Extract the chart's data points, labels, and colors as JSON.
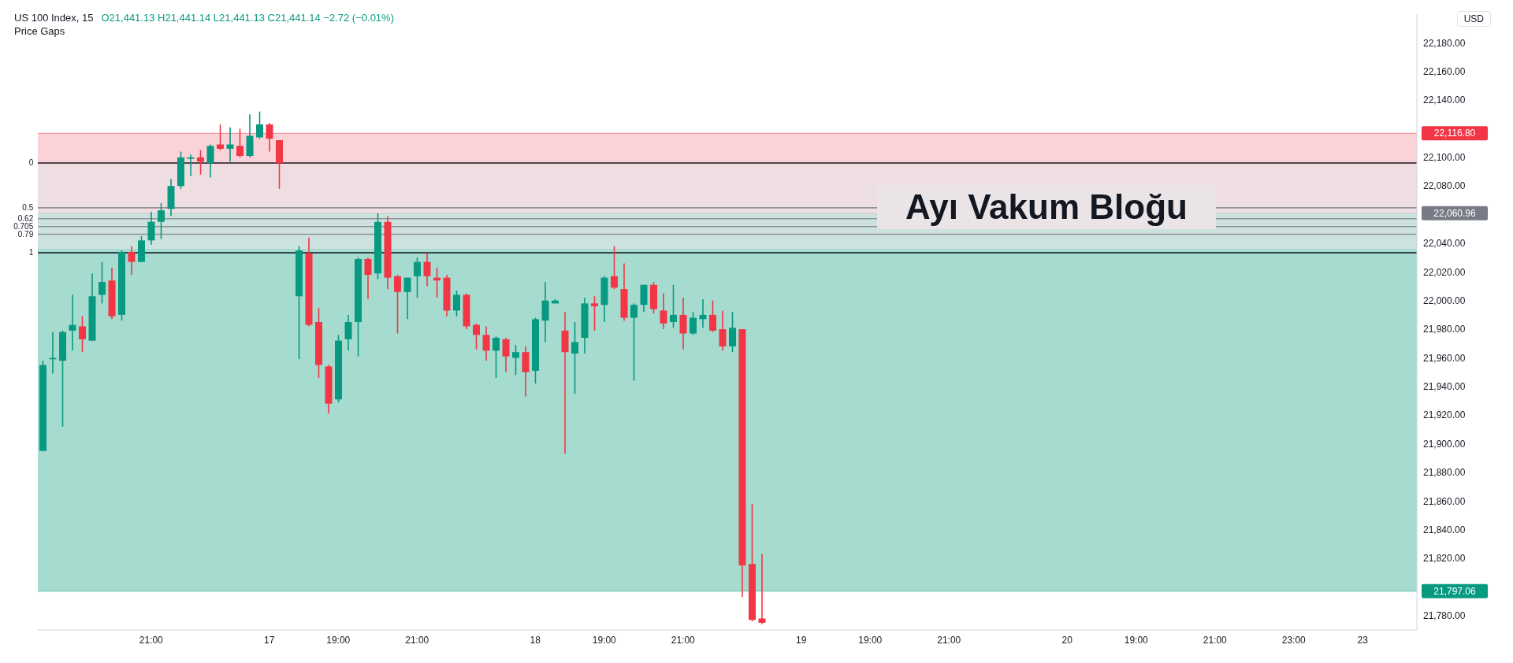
{
  "chart_data": {
    "type": "candlestick",
    "title": "US 100 Index, 15",
    "ylabel": "USD",
    "annotations": [
      "O21,441.13 H21,441.14 L21,441.13 C21,441.14 −2.72 (−0.01%)",
      "Price Gaps",
      "0",
      "0.5",
      "0.62",
      "0.705",
      "0.79",
      "1"
    ],
    "categories": [
      null,
      null,
      null,
      null,
      null,
      null,
      null,
      null,
      null,
      null,
      null,
      "21:00",
      null,
      null,
      null,
      null,
      null,
      null,
      null,
      null,
      null,
      null,
      null,
      "17",
      null,
      null,
      null,
      null,
      null,
      null,
      "19:00",
      null,
      null,
      null,
      null,
      null,
      null,
      null,
      "21:00",
      null,
      null,
      null,
      null,
      null,
      null,
      null,
      null,
      null,
      null,
      null,
      "18",
      null,
      null,
      null,
      null,
      null,
      null,
      "19:00",
      null,
      null,
      null,
      null,
      null,
      null,
      null,
      "21:00",
      null,
      null,
      null,
      null,
      null,
      null,
      null,
      null,
      null,
      null,
      null,
      "19",
      null,
      null,
      null,
      null,
      null,
      null,
      "19:00",
      null,
      null,
      null,
      null,
      null,
      null,
      null,
      "21:00",
      null,
      null,
      null,
      null,
      null,
      null,
      null,
      null,
      null,
      null,
      null,
      "20",
      null,
      null,
      null,
      null,
      null,
      null,
      "19:00",
      null,
      null,
      null,
      null,
      null,
      null,
      null,
      "21:00",
      null,
      null,
      null,
      null,
      null,
      null,
      null,
      "23:00",
      null,
      null,
      null,
      null,
      null,
      null,
      "23",
      null,
      null,
      null,
      null,
      null
    ],
    "ohlc": [
      [
        21895,
        21958,
        21895,
        21955
      ],
      [
        21959,
        21978,
        21949,
        21960
      ],
      [
        21958,
        21979,
        21912,
        21978
      ],
      [
        21979,
        22004,
        21965,
        21983
      ],
      [
        21982,
        21989,
        21964,
        21973
      ],
      [
        21972,
        22019,
        21972,
        22003
      ],
      [
        22004,
        22027,
        21998,
        22013
      ],
      [
        22014,
        22023,
        21987,
        21989
      ],
      [
        21990,
        22035,
        21986,
        22034
      ],
      [
        22034,
        22038,
        22018,
        22027
      ],
      [
        22027,
        22045,
        22027,
        22042
      ],
      [
        22042,
        22062,
        22039,
        22055
      ],
      [
        22055,
        22068,
        22043,
        22063
      ],
      [
        22064,
        22085,
        22059,
        22080
      ],
      [
        22080,
        22104,
        22078,
        22100
      ],
      [
        22099,
        22102,
        22087,
        22100
      ],
      [
        22100,
        22105,
        22088,
        22097
      ],
      [
        22096,
        22109,
        22086,
        22108
      ],
      [
        22109,
        22123,
        22105,
        22106
      ],
      [
        22106,
        22121,
        22097,
        22109
      ],
      [
        22108,
        22120,
        22100,
        22101
      ],
      [
        22101,
        22130,
        22100,
        22115
      ],
      [
        22114,
        22132,
        22113,
        22123
      ],
      [
        22123,
        22124,
        22104,
        22113
      ],
      [
        22112,
        22112,
        22078,
        22096
      ],
      null,
      [
        22003,
        22038,
        21959,
        22035
      ],
      [
        22033,
        22044,
        21982,
        21983
      ],
      [
        21985,
        21995,
        21946,
        21955
      ],
      [
        21954,
        21955,
        21921,
        21928
      ],
      [
        21931,
        21976,
        21929,
        21972
      ],
      [
        21973,
        21990,
        21965,
        21985
      ],
      [
        21985,
        22030,
        21961,
        22029
      ],
      [
        22029,
        22030,
        22001,
        22018
      ],
      [
        22019,
        22061,
        22015,
        22055
      ],
      [
        22055,
        22059,
        22008,
        22016
      ],
      [
        22017,
        22018,
        21977,
        22006
      ],
      [
        22006,
        22016,
        21987,
        22016
      ],
      [
        22017,
        22030,
        22002,
        22027
      ],
      [
        22027,
        22033,
        22010,
        22017
      ],
      [
        22016,
        22023,
        22002,
        22014
      ],
      [
        22016,
        22018,
        21989,
        21993
      ],
      [
        21993,
        22007,
        21989,
        22004
      ],
      [
        22004,
        22005,
        21980,
        21982
      ],
      [
        21983,
        21984,
        21966,
        21976
      ],
      [
        21976,
        21982,
        21958,
        21965
      ],
      [
        21965,
        21975,
        21946,
        21974
      ],
      [
        21973,
        21974,
        21950,
        21961
      ],
      [
        21960,
        21969,
        21948,
        21964
      ],
      [
        21964,
        21968,
        21933,
        21950
      ],
      [
        21951,
        21988,
        21942,
        21987
      ],
      [
        21986,
        22013,
        21971,
        22000
      ],
      [
        21998,
        22001,
        21998,
        22000
      ],
      [
        21979,
        21992,
        21893,
        21964
      ],
      [
        21963,
        21985,
        21935,
        21971
      ],
      [
        21974,
        22002,
        21963,
        21998
      ],
      [
        21998,
        22003,
        21979,
        21996
      ],
      [
        21997,
        22017,
        21985,
        22016
      ],
      [
        22017,
        22038,
        22008,
        22009
      ],
      [
        22008,
        22026,
        21986,
        21988
      ],
      [
        21988,
        21998,
        21944,
        21997
      ],
      [
        21997,
        22011,
        21992,
        22011
      ],
      [
        22011,
        22013,
        21991,
        21994
      ],
      [
        21993,
        22005,
        21980,
        21984
      ],
      [
        21985,
        22011,
        21981,
        21990
      ],
      [
        21990,
        22002,
        21966,
        21977
      ],
      [
        21977,
        21992,
        21976,
        21988
      ],
      [
        21987,
        22001,
        21981,
        21990
      ],
      [
        21990,
        22000,
        21978,
        21979
      ],
      [
        21980,
        21993,
        21965,
        21968
      ],
      [
        21968,
        21992,
        21964,
        21981
      ],
      [
        21980,
        21980,
        21793,
        21815
      ],
      [
        21816,
        21858,
        21776,
        21777
      ],
      [
        21778,
        21823,
        21774,
        21775
      ],
      null,
      null,
      null,
      null,
      null,
      null,
      null,
      null,
      null,
      null,
      null,
      null,
      null,
      null,
      null,
      null,
      null,
      null,
      null,
      null,
      null,
      null,
      null,
      null,
      null,
      null,
      null,
      null,
      null,
      null,
      null,
      null,
      null,
      null,
      null,
      null,
      null,
      null,
      null,
      null,
      null,
      null,
      null,
      null,
      null,
      null,
      null,
      null,
      null,
      null,
      null,
      null,
      null,
      null,
      null,
      null,
      null,
      null,
      null,
      null,
      null,
      null,
      null,
      null,
      null,
      null
    ],
    "colors": [
      "#089981",
      "#089981",
      "#089981",
      "#089981",
      "#f23645",
      "#089981",
      "#089981",
      "#f23645",
      "#089981",
      "#f23645",
      "#089981",
      "#089981",
      "#089981",
      "#089981",
      "#089981",
      "#089981",
      "#f23645",
      "#089981",
      "#f23645",
      "#089981",
      "#f23645",
      "#089981",
      "#089981",
      "#f23645",
      "#f23645",
      null,
      "#089981",
      "#f23645",
      "#f23645",
      "#f23645",
      "#089981",
      "#089981",
      "#089981",
      "#f23645",
      "#089981",
      "#f23645",
      "#f23645",
      "#089981",
      "#089981",
      "#f23645",
      "#f23645",
      "#f23645",
      "#089981",
      "#f23645",
      "#f23645",
      "#f23645",
      "#089981",
      "#f23645",
      "#089981",
      "#f23645",
      "#089981",
      "#089981",
      "#089981",
      "#f23645",
      "#089981",
      "#089981",
      "#f23645",
      "#089981",
      "#f23645",
      "#f23645",
      "#089981",
      "#089981",
      "#f23645",
      "#f23645",
      "#089981",
      "#f23645",
      "#089981",
      "#089981",
      "#f23645",
      "#f23645",
      "#089981",
      "#f23645",
      "#f23645",
      "#f23645",
      null,
      null,
      null,
      null,
      null,
      null,
      null,
      null,
      null,
      null,
      null,
      null,
      null,
      null,
      null,
      null,
      null,
      null,
      null,
      null,
      null,
      null,
      null,
      null,
      null,
      null,
      null,
      null,
      null,
      null,
      null,
      null,
      null,
      null,
      null,
      null,
      null,
      null,
      null,
      null,
      null,
      null,
      null,
      null,
      null,
      null,
      null,
      null,
      null,
      null,
      null,
      null,
      null,
      null,
      null,
      null,
      null,
      null,
      null,
      null,
      null,
      null,
      null,
      null,
      null,
      null
    ],
    "ylim": [
      21770,
      22200
    ],
    "yticks": [
      {
        "value": 21780,
        "label": "21,780.00"
      },
      {
        "value": 21820,
        "label": "21,820.00"
      },
      {
        "value": 21840,
        "label": "21,840.00"
      },
      {
        "value": 21860,
        "label": "21,860.00"
      },
      {
        "value": 21880,
        "label": "21,880.00"
      },
      {
        "value": 21900,
        "label": "21,900.00"
      },
      {
        "value": 21920,
        "label": "21,920.00"
      },
      {
        "value": 21940,
        "label": "21,940.00"
      },
      {
        "value": 21960,
        "label": "21,960.00"
      },
      {
        "value": 21980,
        "label": "21,980.00"
      },
      {
        "value": 22000,
        "label": "22,000.00"
      },
      {
        "value": 22020,
        "label": "22,020.00"
      },
      {
        "value": 22040,
        "label": "22,040.00"
      },
      {
        "value": 22080,
        "label": "22,080.00"
      },
      {
        "value": 22100,
        "label": "22,100.00"
      },
      {
        "value": 22140,
        "label": "22,140.00"
      },
      {
        "value": 22160,
        "label": "22,160.00"
      },
      {
        "value": 22180,
        "label": "22,180.00"
      }
    ],
    "bands": [
      {
        "axis": "y",
        "from": 21797.06,
        "to": 22060.96,
        "color": "#a6dbcf"
      },
      {
        "axis": "y",
        "from": 22060.96,
        "to": 22116.8,
        "color": "#f9d3d8"
      },
      {
        "axis": "y",
        "from": 22036,
        "to": 22095,
        "color": "#e6e6e8",
        "label": "Ayı Vakum Bloğu"
      }
    ],
    "ref_lines": [
      {
        "axis": "y",
        "value": 22096.1
      },
      {
        "axis": "y",
        "value": 22064.8
      },
      {
        "axis": "y",
        "value": 22057.2
      },
      {
        "axis": "y",
        "value": 22051.7
      },
      {
        "axis": "y",
        "value": 22046.3
      },
      {
        "axis": "y",
        "value": 22033.4
      },
      {
        "axis": "y",
        "value": 22116.8,
        "label": "22,116.80",
        "color": "#f23645"
      },
      {
        "axis": "y",
        "value": 22060.96,
        "label": "22,060.96",
        "color": "#787b86"
      },
      {
        "axis": "y",
        "value": 21797.06,
        "label": "21,797.06",
        "color": "#089981"
      }
    ]
  }
}
